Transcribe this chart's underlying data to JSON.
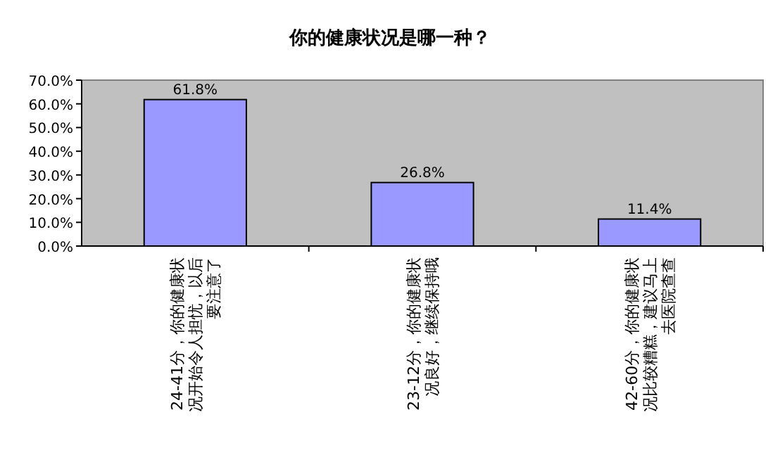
{
  "chart_data": {
    "type": "bar",
    "title": "你的健康状况是哪一种？",
    "categories": [
      "24-41分，你的健康状况开始令人担忧，以后要注意了",
      "23-12分，你的健康状况良好，继续保持哦",
      "42-60分，你的健康状况比较糟糕，建议马上去医院查查"
    ],
    "values": [
      61.8,
      26.8,
      11.4
    ],
    "value_labels": [
      "61.8%",
      "26.8%",
      "11.4%"
    ],
    "color": "#9999ff",
    "ylim": [
      0,
      70
    ],
    "yticks": [
      {
        "value": 0,
        "label": "0.0%"
      },
      {
        "value": 10,
        "label": "10.0%"
      },
      {
        "value": 20,
        "label": "20.0%"
      },
      {
        "value": 30,
        "label": "30.0%"
      },
      {
        "value": 40,
        "label": "40.0%"
      },
      {
        "value": 50,
        "label": "50.0%"
      },
      {
        "value": 60,
        "label": "60.0%"
      },
      {
        "value": 70,
        "label": "70.0%"
      }
    ],
    "grid": false
  }
}
